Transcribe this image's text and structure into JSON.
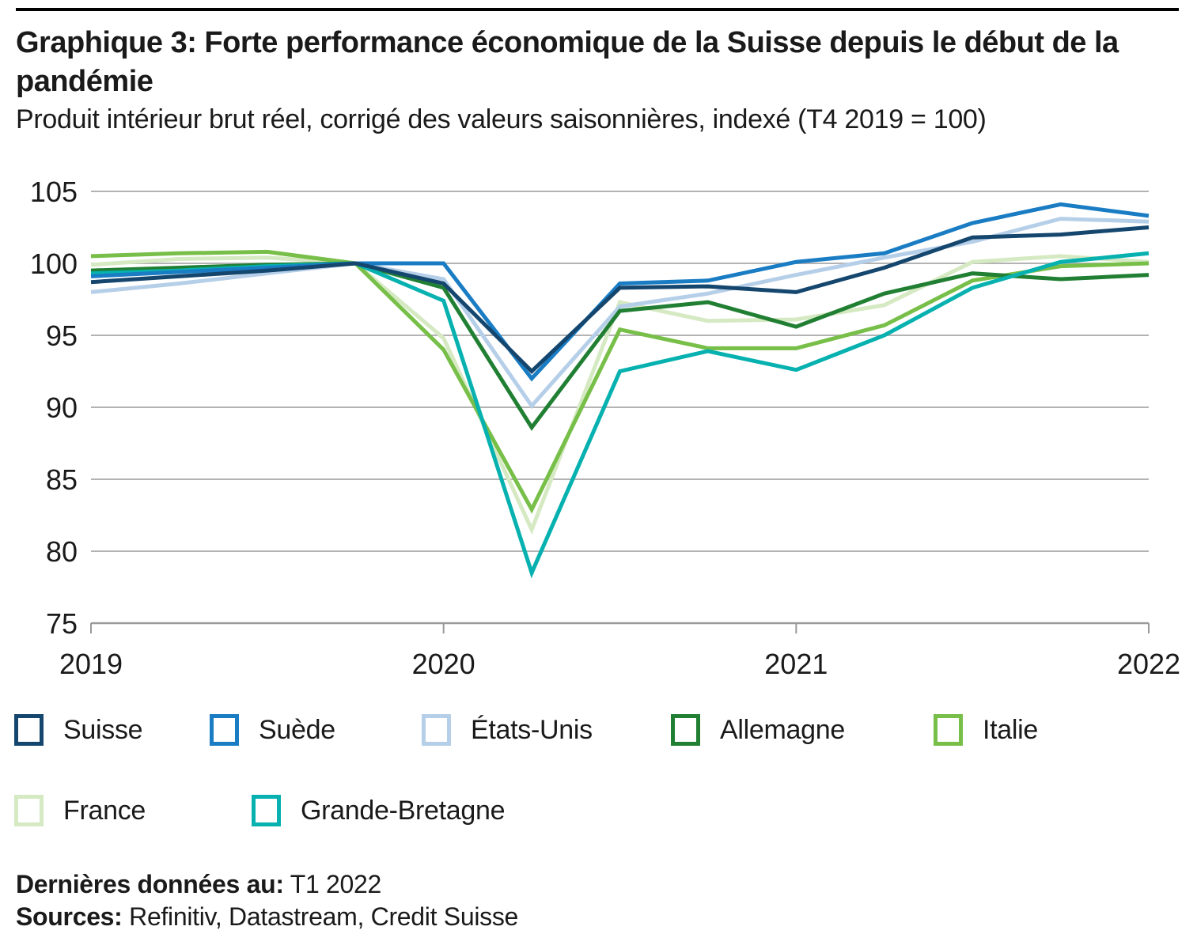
{
  "colors": {
    "top_rule": "#000000",
    "grid": "#b3b3b3",
    "axis": "#999999",
    "text": "#1a1a1a",
    "background": "#ffffff"
  },
  "chart_data": {
    "type": "line",
    "title": "Graphique 3: Forte performance économique de la Suisse depuis le début de la pandémie",
    "subtitle": "Produit intérieur brut réel, corrigé des valeurs saisonnières, indexé (T4 2019 = 100)",
    "x": [
      "T1 2019",
      "T2 2019",
      "T3 2019",
      "T4 2019",
      "T1 2020",
      "T2 2020",
      "T3 2020",
      "T4 2020",
      "T1 2021",
      "T2 2021",
      "T3 2021",
      "T4 2021",
      "T1 2022"
    ],
    "xticks": [
      {
        "index": 0,
        "label": "2019"
      },
      {
        "index": 4,
        "label": "2020"
      },
      {
        "index": 8,
        "label": "2021"
      },
      {
        "index": 12,
        "label": "2022"
      }
    ],
    "yticks": [
      105,
      100,
      95,
      90,
      85,
      80,
      75
    ],
    "ylim": [
      75,
      105
    ],
    "grid": true,
    "legend_position": "bottom",
    "series": [
      {
        "name": "Suisse",
        "color": "#14466e",
        "values": [
          98.7,
          99.1,
          99.5,
          100,
          98.6,
          92.5,
          98.3,
          98.4,
          98.0,
          99.7,
          101.8,
          102.0,
          102.5
        ]
      },
      {
        "name": "Suède",
        "color": "#1a7dc4",
        "values": [
          99.1,
          99.4,
          99.7,
          100,
          100.0,
          92.0,
          98.6,
          98.8,
          100.1,
          100.7,
          102.8,
          104.1,
          103.3
        ]
      },
      {
        "name": "États-Unis",
        "color": "#b6cfe9",
        "values": [
          98.0,
          98.6,
          99.3,
          100,
          98.9,
          90.1,
          97.0,
          97.9,
          99.2,
          100.4,
          101.5,
          103.1,
          102.9
        ]
      },
      {
        "name": "Allemagne",
        "color": "#217f33",
        "values": [
          99.5,
          99.7,
          99.9,
          100,
          98.3,
          88.6,
          96.7,
          97.3,
          95.6,
          97.9,
          99.3,
          98.9,
          99.2
        ]
      },
      {
        "name": "Italie",
        "color": "#77bf48",
        "values": [
          100.5,
          100.7,
          100.8,
          100,
          94.0,
          82.9,
          95.4,
          94.1,
          94.1,
          95.7,
          98.8,
          99.8,
          100.0
        ]
      },
      {
        "name": "France",
        "color": "#d5e9c2",
        "values": [
          99.9,
          100.3,
          100.4,
          100,
          94.8,
          81.5,
          97.3,
          96.0,
          96.1,
          97.1,
          100.1,
          100.5,
          100.1
        ]
      },
      {
        "name": "Grande-Bretagne",
        "color": "#06b1af",
        "values": [
          99.3,
          99.5,
          99.8,
          100,
          97.4,
          78.5,
          92.5,
          93.9,
          92.6,
          95.0,
          98.3,
          100.1,
          100.7
        ]
      }
    ]
  },
  "footer": {
    "last_data_label": "Dernières données au:",
    "last_data_value": " T1 2022",
    "sources_label": "Sources:",
    "sources_value": " Refinitiv, Datastream, Credit Suisse"
  }
}
